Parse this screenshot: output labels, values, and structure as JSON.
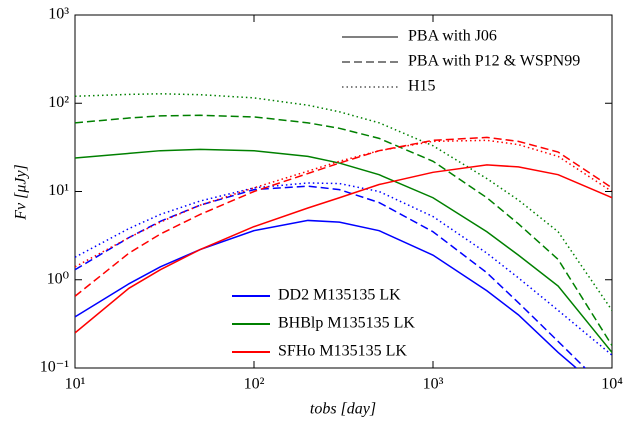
{
  "chart_data": {
    "type": "line",
    "x_label": "tobs [day]",
    "y_label": "Fν [μJy]",
    "xscale": "log",
    "yscale": "log",
    "xlim": [
      10,
      10000
    ],
    "ylim": [
      0.1,
      1000
    ],
    "xticks": [
      {
        "value": 10,
        "label": "10¹"
      },
      {
        "value": 100,
        "label": "10²"
      },
      {
        "value": 1000,
        "label": "10³"
      },
      {
        "value": 10000,
        "label": "10⁴"
      }
    ],
    "yticks": [
      {
        "value": 0.1,
        "label": "10⁻¹"
      },
      {
        "value": 1,
        "label": "10⁰"
      },
      {
        "value": 10,
        "label": "10¹"
      },
      {
        "value": 100,
        "label": "10²"
      },
      {
        "value": 1000,
        "label": "10³"
      }
    ],
    "line_styles": [
      {
        "name": "PBA with J06",
        "dash": "solid"
      },
      {
        "name": "PBA with P12 & WSPN99",
        "dash": "dashed"
      },
      {
        "name": "H15",
        "dash": "dotted"
      }
    ],
    "x": [
      10,
      20,
      30,
      50,
      100,
      200,
      300,
      500,
      1000,
      2000,
      3000,
      5000,
      10000
    ],
    "series": [
      {
        "name": "DD2 M135135 LK",
        "color": "#0000ff",
        "curves": [
          [
            0.38,
            0.9,
            1.4,
            2.2,
            3.6,
            4.7,
            4.5,
            3.6,
            1.9,
            0.75,
            0.4,
            0.15,
            0.045
          ],
          [
            1.3,
            3.0,
            4.6,
            7,
            10.5,
            11.5,
            10.5,
            7.5,
            3.5,
            1.2,
            0.55,
            0.2,
            0.05
          ],
          [
            1.8,
            3.8,
            5.5,
            7.8,
            11,
            12.5,
            12.3,
            10,
            5.2,
            2.0,
            1.05,
            0.45,
            0.14
          ]
        ]
      },
      {
        "name": "BHBlp M135135 LK",
        "color": "#008000",
        "curves": [
          [
            24,
            27,
            29,
            30,
            29,
            25,
            21,
            15.5,
            8.5,
            3.5,
            1.9,
            0.85,
            0.15
          ],
          [
            60,
            68,
            72,
            73,
            70,
            60,
            52,
            40,
            22,
            8.5,
            4.3,
            1.7,
            0.18
          ],
          [
            120,
            126,
            128,
            125,
            115,
            95,
            80,
            60,
            33,
            14,
            8,
            3.5,
            0.45
          ]
        ]
      },
      {
        "name": "SFHo M135135 LK",
        "color": "#ff0000",
        "curves": [
          [
            0.25,
            0.8,
            1.3,
            2.2,
            4,
            6.5,
            8.5,
            12,
            16.5,
            20,
            19,
            15.5,
            8.5
          ],
          [
            0.65,
            2,
            3.3,
            5.5,
            10,
            16,
            21,
            29,
            38,
            41,
            37,
            28,
            11
          ],
          [
            1.4,
            3,
            4.5,
            7,
            11,
            17,
            22,
            29,
            37,
            38,
            34,
            25,
            10
          ]
        ]
      }
    ]
  }
}
